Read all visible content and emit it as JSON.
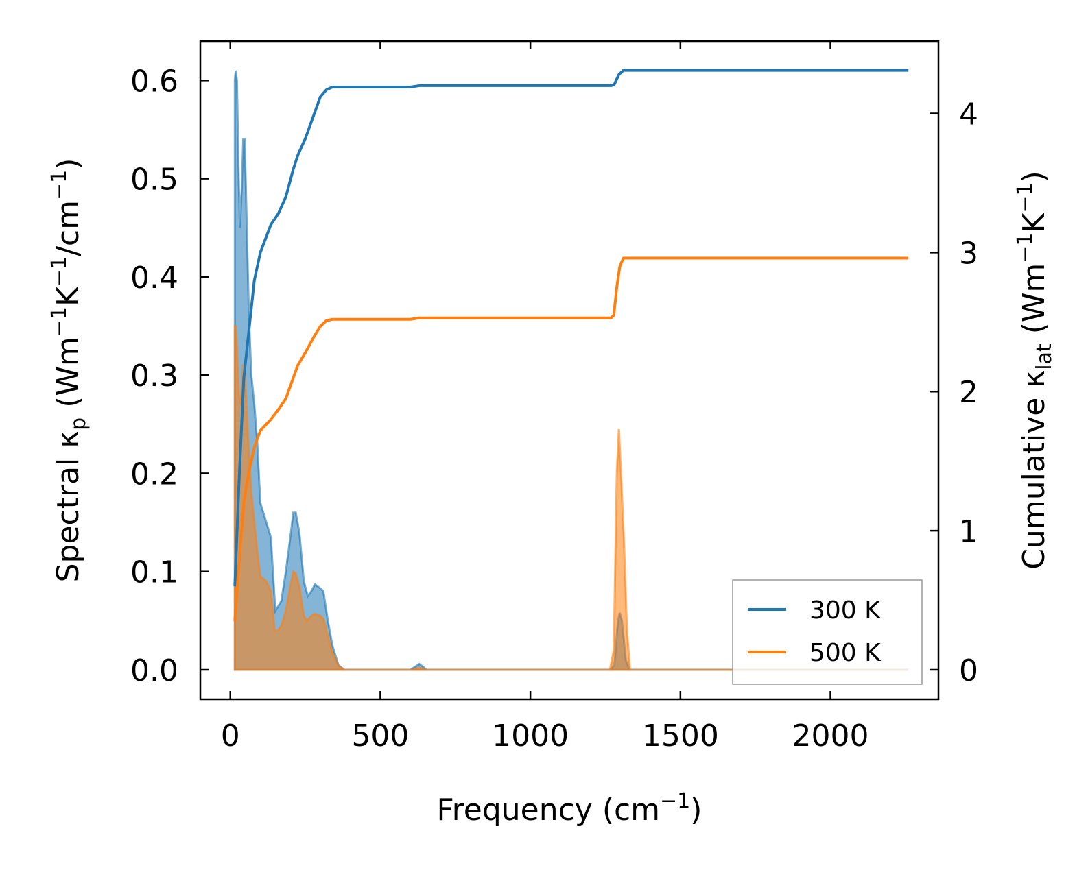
{
  "colors": {
    "series_300K": "#1f77b4",
    "series_500K": "#ff7f0e",
    "fill_300K": "#1f77b4",
    "fill_500K": "#ff7f0e",
    "axes": "#000000",
    "legend_frame": "#999999"
  },
  "chart_data": {
    "type": "line",
    "xlabel_main": "Frequency (cm",
    "xlabel_sup": "−1",
    "xlabel_end": ")",
    "ylabel_left": {
      "p1": "Spectral κ",
      "sub": "p",
      "p2": " (Wm",
      "sup1": "−1",
      "p3": "K",
      "sup2": "−1",
      "p4": "/cm",
      "sup3": "−1",
      "p5": ")"
    },
    "ylabel_right": {
      "p1": "Cumulative κ",
      "sub": "lat",
      "p2": " (Wm",
      "sup1": "−1",
      "p3": "K",
      "sup2": "−1",
      "p4": ")"
    },
    "xlim": [
      -100,
      2360
    ],
    "ylim_left": [
      -0.03,
      0.64
    ],
    "ylim_right": [
      -0.212,
      4.52
    ],
    "x_ticks": [
      0,
      500,
      1000,
      1500,
      2000
    ],
    "x_tick_labels": [
      "0",
      "500",
      "1000",
      "1500",
      "2000"
    ],
    "y_left_ticks": [
      0.0,
      0.1,
      0.2,
      0.3,
      0.4,
      0.5,
      0.6
    ],
    "y_left_tick_labels": [
      "0.0",
      "0.1",
      "0.2",
      "0.3",
      "0.4",
      "0.5",
      "0.6"
    ],
    "y_right_ticks": [
      0,
      1,
      2,
      3,
      4
    ],
    "y_right_tick_labels": [
      "0",
      "1",
      "2",
      "3",
      "4"
    ],
    "legend": {
      "placement": "lower-right",
      "entries": [
        "300 K",
        "500 K"
      ]
    },
    "series": [
      {
        "name": "300 K",
        "spectral": [
          [
            15,
            0.0
          ],
          [
            15,
            0.6
          ],
          [
            18,
            0.61
          ],
          [
            22,
            0.6
          ],
          [
            28,
            0.5
          ],
          [
            32,
            0.45
          ],
          [
            38,
            0.49
          ],
          [
            43,
            0.54
          ],
          [
            48,
            0.54
          ],
          [
            55,
            0.45
          ],
          [
            62,
            0.36
          ],
          [
            70,
            0.3
          ],
          [
            80,
            0.27
          ],
          [
            90,
            0.23
          ],
          [
            100,
            0.17
          ],
          [
            110,
            0.16
          ],
          [
            120,
            0.15
          ],
          [
            135,
            0.135
          ],
          [
            150,
            0.06
          ],
          [
            160,
            0.065
          ],
          [
            170,
            0.07
          ],
          [
            185,
            0.1
          ],
          [
            200,
            0.135
          ],
          [
            210,
            0.16
          ],
          [
            218,
            0.16
          ],
          [
            230,
            0.14
          ],
          [
            245,
            0.09
          ],
          [
            258,
            0.075
          ],
          [
            270,
            0.08
          ],
          [
            282,
            0.087
          ],
          [
            300,
            0.083
          ],
          [
            310,
            0.08
          ],
          [
            325,
            0.05
          ],
          [
            340,
            0.025
          ],
          [
            360,
            0.005
          ],
          [
            380,
            0.0
          ],
          [
            600,
            0.0
          ],
          [
            630,
            0.006
          ],
          [
            655,
            0.0
          ],
          [
            1265,
            0.0
          ],
          [
            1280,
            0.005
          ],
          [
            1292,
            0.05
          ],
          [
            1298,
            0.058
          ],
          [
            1305,
            0.05
          ],
          [
            1318,
            0.01
          ],
          [
            1330,
            0.0
          ],
          [
            2260,
            0.0
          ]
        ],
        "cumulative": [
          [
            15,
            0.6
          ],
          [
            30,
            1.4
          ],
          [
            45,
            2.1
          ],
          [
            60,
            2.4
          ],
          [
            80,
            2.8
          ],
          [
            100,
            3.0
          ],
          [
            135,
            3.2
          ],
          [
            160,
            3.28
          ],
          [
            185,
            3.4
          ],
          [
            210,
            3.6
          ],
          [
            225,
            3.7
          ],
          [
            250,
            3.82
          ],
          [
            280,
            4.0
          ],
          [
            300,
            4.12
          ],
          [
            320,
            4.17
          ],
          [
            340,
            4.19
          ],
          [
            360,
            4.19
          ],
          [
            600,
            4.19
          ],
          [
            630,
            4.2
          ],
          [
            1270,
            4.2
          ],
          [
            1280,
            4.21
          ],
          [
            1295,
            4.28
          ],
          [
            1310,
            4.31
          ],
          [
            2260,
            4.31
          ]
        ]
      },
      {
        "name": "500 K",
        "spectral": [
          [
            15,
            0.0
          ],
          [
            15,
            0.35
          ],
          [
            18,
            0.35
          ],
          [
            22,
            0.33
          ],
          [
            28,
            0.28
          ],
          [
            35,
            0.27
          ],
          [
            42,
            0.31
          ],
          [
            48,
            0.31
          ],
          [
            55,
            0.26
          ],
          [
            62,
            0.22
          ],
          [
            70,
            0.18
          ],
          [
            80,
            0.15
          ],
          [
            90,
            0.12
          ],
          [
            100,
            0.095
          ],
          [
            110,
            0.093
          ],
          [
            120,
            0.09
          ],
          [
            135,
            0.08
          ],
          [
            148,
            0.04
          ],
          [
            158,
            0.04
          ],
          [
            170,
            0.045
          ],
          [
            185,
            0.06
          ],
          [
            200,
            0.085
          ],
          [
            210,
            0.1
          ],
          [
            218,
            0.098
          ],
          [
            230,
            0.085
          ],
          [
            245,
            0.055
          ],
          [
            255,
            0.05
          ],
          [
            270,
            0.055
          ],
          [
            282,
            0.057
          ],
          [
            300,
            0.055
          ],
          [
            310,
            0.052
          ],
          [
            325,
            0.035
          ],
          [
            340,
            0.018
          ],
          [
            360,
            0.004
          ],
          [
            380,
            0.0
          ],
          [
            600,
            0.0
          ],
          [
            630,
            0.002
          ],
          [
            655,
            0.0
          ],
          [
            1265,
            0.0
          ],
          [
            1278,
            0.02
          ],
          [
            1288,
            0.2
          ],
          [
            1295,
            0.245
          ],
          [
            1302,
            0.2
          ],
          [
            1312,
            0.13
          ],
          [
            1322,
            0.04
          ],
          [
            1332,
            0.0
          ],
          [
            2260,
            0.0
          ]
        ],
        "cumulative": [
          [
            15,
            0.35
          ],
          [
            30,
            0.8
          ],
          [
            45,
            1.2
          ],
          [
            60,
            1.4
          ],
          [
            80,
            1.6
          ],
          [
            100,
            1.72
          ],
          [
            135,
            1.8
          ],
          [
            160,
            1.87
          ],
          [
            185,
            1.95
          ],
          [
            210,
            2.1
          ],
          [
            225,
            2.19
          ],
          [
            250,
            2.28
          ],
          [
            280,
            2.4
          ],
          [
            300,
            2.47
          ],
          [
            320,
            2.51
          ],
          [
            340,
            2.52
          ],
          [
            360,
            2.52
          ],
          [
            600,
            2.52
          ],
          [
            630,
            2.53
          ],
          [
            1270,
            2.53
          ],
          [
            1278,
            2.55
          ],
          [
            1288,
            2.75
          ],
          [
            1298,
            2.9
          ],
          [
            1310,
            2.96
          ],
          [
            2260,
            2.96
          ]
        ]
      }
    ]
  }
}
